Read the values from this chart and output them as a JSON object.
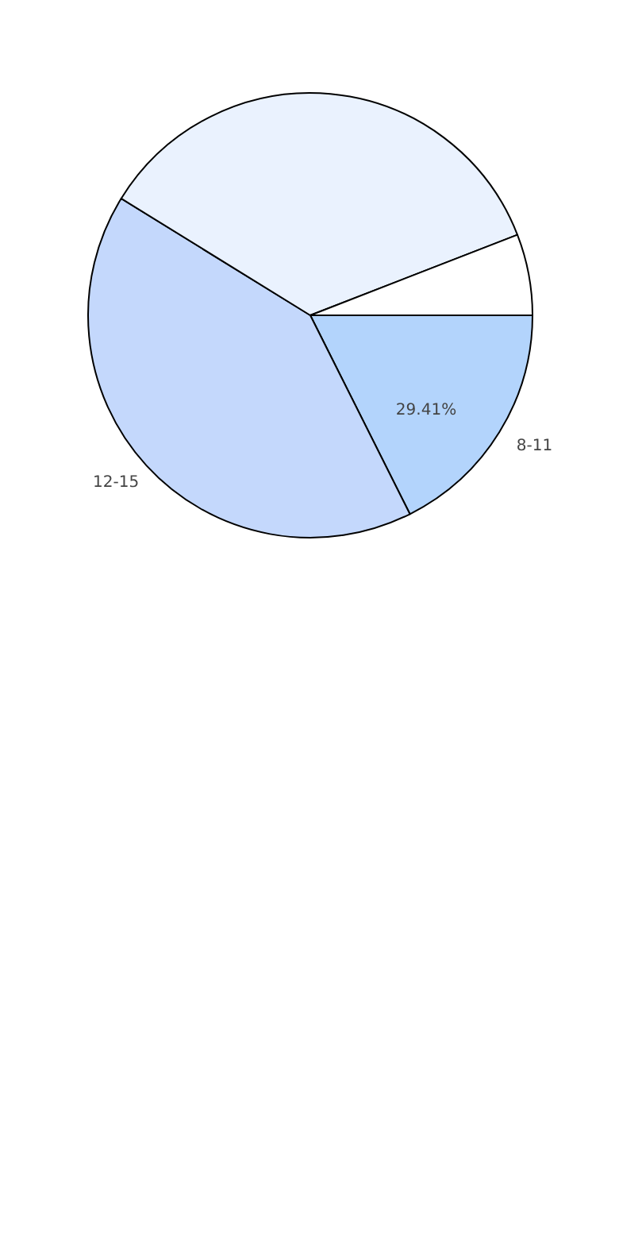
{
  "chart_data": {
    "type": "pie",
    "categories": [
      "8-11",
      "12-15",
      null,
      null
    ],
    "values": [
      17.6,
      41.2,
      35.3,
      5.9
    ],
    "colors": [
      "#b3d4fc",
      "#c4d8fc",
      "#eaf2fe",
      "#ffffff"
    ],
    "annotations": [
      "29.41%"
    ]
  }
}
